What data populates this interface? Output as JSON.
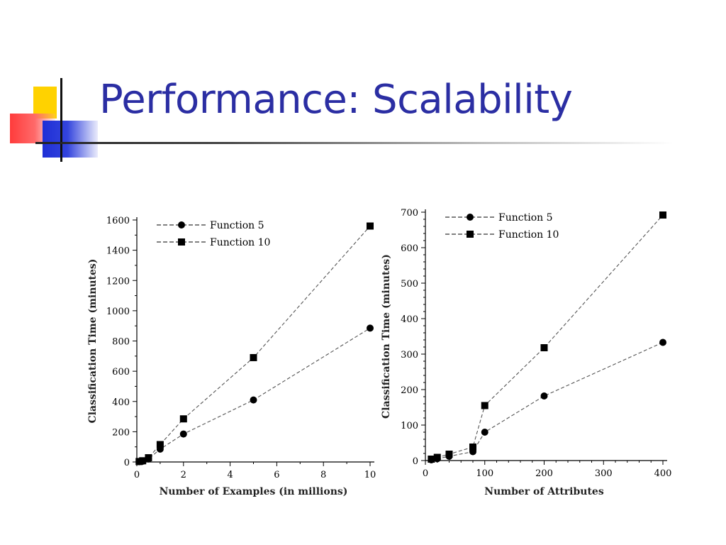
{
  "slide": {
    "title": "Performance: Scalability"
  },
  "chart_data": [
    {
      "type": "line",
      "xlabel": "Number of Examples (in millions)",
      "ylabel": "Classification Time (minutes)",
      "xlim": [
        0,
        10
      ],
      "ylim": [
        0,
        1600
      ],
      "xticks": [
        0,
        2,
        4,
        6,
        8,
        10
      ],
      "yticks": [
        0,
        200,
        400,
        600,
        800,
        1000,
        1200,
        1400,
        1600
      ],
      "grid": false,
      "legend": "top-left",
      "series": [
        {
          "name": "Function 5",
          "marker": "circle",
          "x": [
            0.1,
            0.25,
            0.5,
            1,
            2,
            5,
            10
          ],
          "y": [
            2,
            5,
            20,
            85,
            185,
            410,
            885
          ]
        },
        {
          "name": "Function 10",
          "marker": "square",
          "x": [
            0.1,
            0.25,
            0.5,
            1,
            2,
            5,
            10
          ],
          "y": [
            3,
            8,
            28,
            115,
            285,
            690,
            1560
          ]
        }
      ]
    },
    {
      "type": "line",
      "xlabel": "Number of Attributes",
      "ylabel": "Classification Time (minutes)",
      "xlim": [
        0,
        400
      ],
      "ylim": [
        0,
        700
      ],
      "xticks": [
        0,
        100,
        200,
        300,
        400
      ],
      "yticks": [
        0,
        100,
        200,
        300,
        400,
        500,
        600,
        700
      ],
      "grid": false,
      "legend": "top-left",
      "series": [
        {
          "name": "Function 5",
          "marker": "circle",
          "x": [
            10,
            20,
            40,
            80,
            100,
            200,
            400
          ],
          "y": [
            2,
            5,
            12,
            25,
            80,
            182,
            333
          ]
        },
        {
          "name": "Function 10",
          "marker": "square",
          "x": [
            10,
            20,
            40,
            80,
            100,
            200,
            400
          ],
          "y": [
            4,
            9,
            18,
            38,
            155,
            318,
            692
          ]
        }
      ]
    }
  ]
}
